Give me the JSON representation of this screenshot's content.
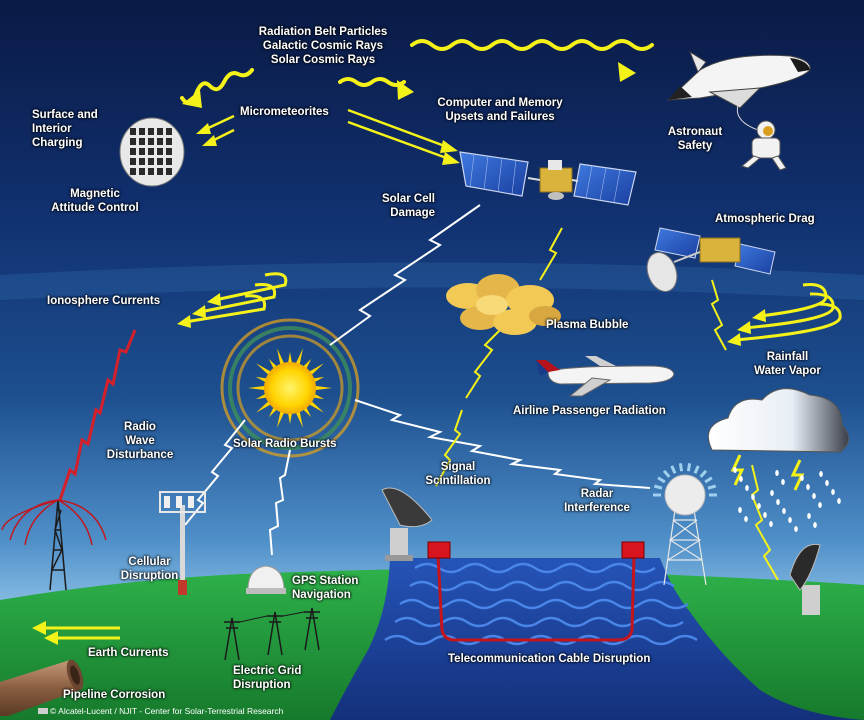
{
  "labels": {
    "radiation": "Radiation Belt Particles\nGalactic Cosmic Rays\nSolar Cosmic Rays",
    "surface_charging": "Surface and\nInterior\nCharging",
    "micrometeorites": "Micrometeorites",
    "computer_memory": "Computer and Memory\nUpsets and Failures",
    "astronaut_safety": "Astronaut\nSafety",
    "magnetic_attitude": "Magnetic\nAttitude Control",
    "solar_cell": "Solar Cell\nDamage",
    "atmospheric_drag": "Atmospheric Drag",
    "ionosphere_currents": "Ionosphere Currents",
    "plasma_bubble": "Plasma Bubble",
    "rainfall": "Rainfall\nWater Vapor",
    "airline_radiation": "Airline Passenger Radiation",
    "radio_wave": "Radio\nWave\nDisturbance",
    "solar_radio_bursts": "Solar Radio Bursts",
    "signal_scintillation": "Signal\nScintillation",
    "radar_interference": "Radar\nInterference",
    "cellular": "Cellular\nDisruption",
    "gps": "GPS Station\nNavigation",
    "earth_currents": "Earth Currents",
    "electric_grid": "Electric Grid\nDisruption",
    "telecom_cable": "Telecommunication Cable Disruption",
    "pipeline": "Pipeline Corrosion"
  },
  "credit": "© Alcatel-Lucent / NJIT - Center for Solar-Terrestrial Research",
  "colors": {
    "sky_top": "#0a1a45",
    "sky_mid": "#1d4f8f",
    "sky_bottom": "#9fd0ef",
    "ground": "#1f9a3a",
    "ocean": "#1b3f9c",
    "arrow_yellow": "#f5f21a",
    "sun": "#ffd400",
    "radio_red": "#d4202a",
    "cable_red": "#c4141c"
  },
  "icons": [
    "sun-icon",
    "satellite-icon",
    "space-shuttle-icon",
    "astronaut-icon",
    "spherical-satellite-icon",
    "dish-satellite-icon",
    "airplane-icon",
    "storm-cloud-icon",
    "plasma-cloud-icon",
    "radio-tower-icon",
    "cell-tower-icon",
    "gps-dome-icon",
    "power-pylon-icon",
    "radar-dish-icon",
    "radar-dome-tower-icon",
    "pipeline-icon"
  ]
}
